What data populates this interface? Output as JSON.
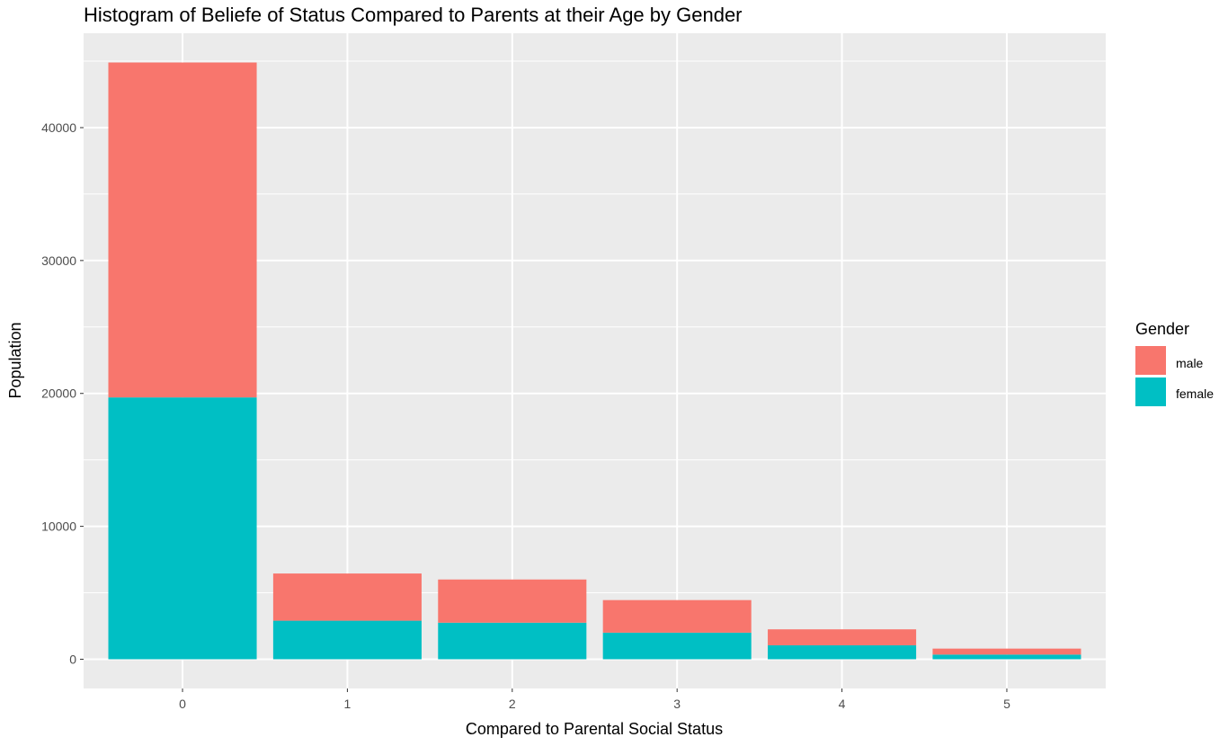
{
  "chart_data": {
    "type": "bar",
    "stacked": true,
    "title": "Histogram of Beliefe of Status Compared to Parents at their Age by Gender",
    "xlabel": "Compared to Parental Social Status",
    "ylabel": "Population",
    "categories": [
      "0",
      "1",
      "2",
      "3",
      "4",
      "5"
    ],
    "yticks": [
      "0",
      "10000",
      "20000",
      "30000",
      "40000"
    ],
    "ylim": [
      -2200,
      47100
    ],
    "grid": true,
    "legend": {
      "title": "Gender",
      "placement": "right",
      "entries": [
        "male",
        "female"
      ]
    },
    "series": [
      {
        "name": "female",
        "color": "#00BFC4",
        "values": [
          19700,
          2900,
          2750,
          2000,
          1050,
          350
        ]
      },
      {
        "name": "male",
        "color": "#F8766D",
        "values": [
          25200,
          3550,
          3250,
          2450,
          1200,
          450
        ]
      }
    ]
  }
}
